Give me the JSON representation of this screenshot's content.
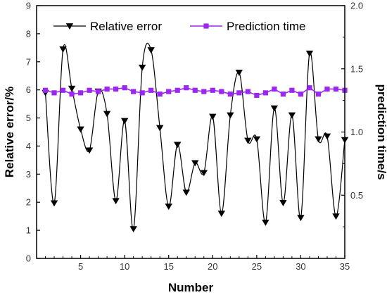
{
  "chart_data": {
    "type": "line",
    "xlabel": "Number",
    "ylabel_left": "Relative error/%",
    "ylabel_right": "prediction time/s",
    "xlim": [
      0,
      35
    ],
    "ylim_left": [
      0,
      9
    ],
    "ylim_right": [
      0,
      2.0
    ],
    "xticks": [
      5,
      10,
      15,
      20,
      25,
      30,
      35
    ],
    "yticks_left": [
      0,
      1,
      2,
      3,
      4,
      5,
      6,
      7,
      8,
      9
    ],
    "yticks_right": [
      0.5,
      1.0,
      1.5,
      2.0
    ],
    "ytick_labels_right": [
      "0.5",
      "1.0",
      "1.5",
      "2.0"
    ],
    "legend_position": "top",
    "x": [
      1,
      2,
      3,
      4,
      5,
      6,
      7,
      8,
      9,
      10,
      11,
      12,
      13,
      14,
      15,
      16,
      17,
      18,
      19,
      20,
      21,
      22,
      23,
      24,
      25,
      26,
      27,
      28,
      29,
      30,
      31,
      32,
      33,
      34,
      35
    ],
    "series": [
      {
        "name": "Relative error",
        "axis": "left",
        "color": "#000000",
        "marker": "down-triangle",
        "values": [
          5.9,
          1.97,
          7.45,
          6.05,
          4.6,
          3.85,
          5.95,
          5.15,
          2.05,
          4.9,
          1.05,
          6.8,
          7.42,
          4.65,
          1.85,
          4.05,
          2.35,
          3.4,
          3.05,
          5.05,
          1.6,
          5.1,
          6.62,
          4.2,
          4.25,
          1.28,
          5.35,
          1.98,
          5.1,
          1.45,
          7.3,
          4.25,
          4.35,
          1.5,
          4.22
        ]
      },
      {
        "name": "Prediction time",
        "axis": "right",
        "color": "#9c27f0",
        "marker": "square",
        "values": [
          1.33,
          1.31,
          1.33,
          1.3,
          1.31,
          1.33,
          1.32,
          1.34,
          1.34,
          1.35,
          1.32,
          1.31,
          1.33,
          1.3,
          1.32,
          1.33,
          1.35,
          1.33,
          1.32,
          1.33,
          1.32,
          1.3,
          1.31,
          1.32,
          1.29,
          1.31,
          1.34,
          1.3,
          1.33,
          1.3,
          1.35,
          1.3,
          1.34,
          1.34,
          1.33
        ]
      }
    ]
  }
}
